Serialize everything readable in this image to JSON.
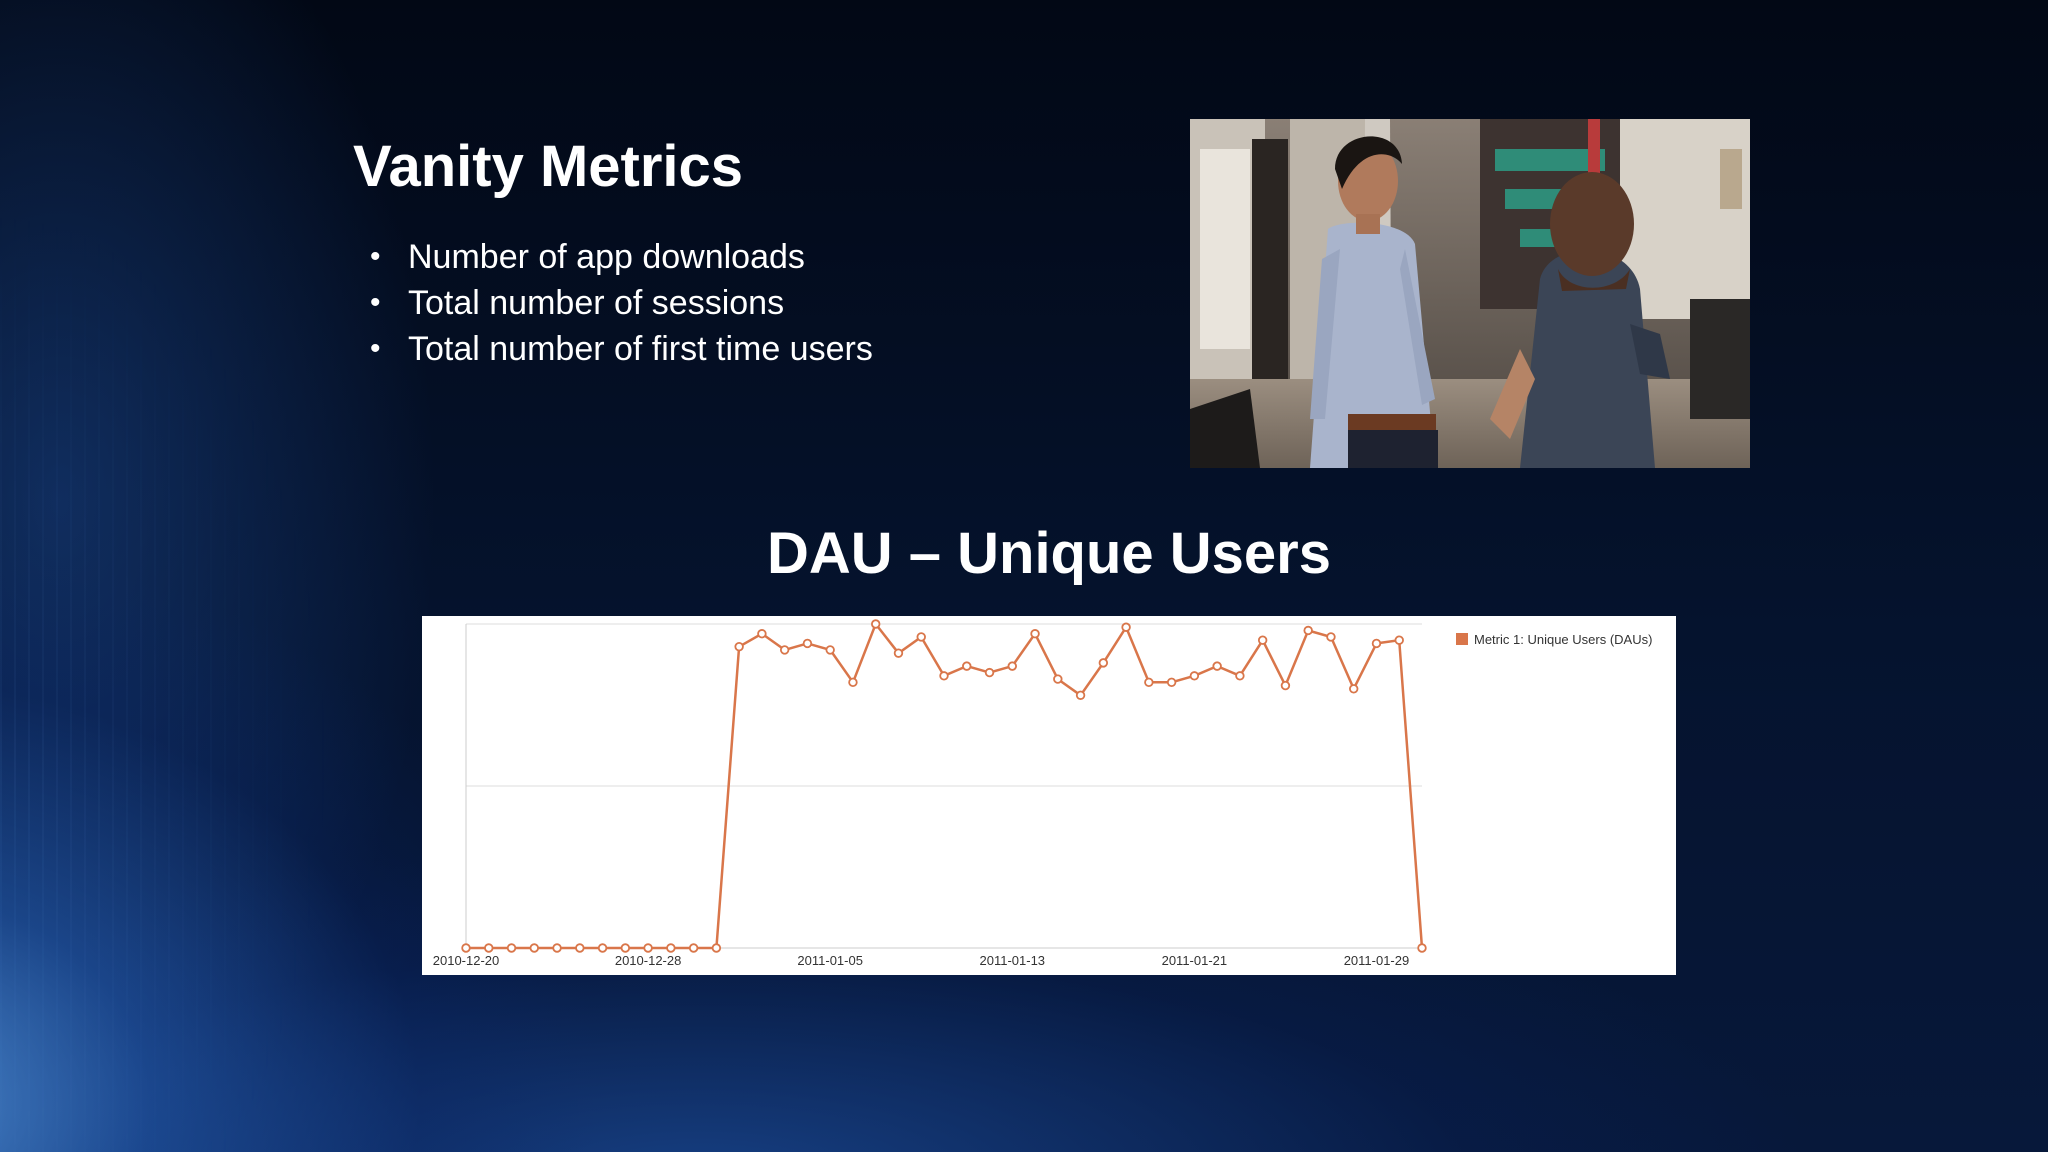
{
  "slide": {
    "title": "Vanity Metrics",
    "bullets": [
      "Number of app downloads",
      "Total number of sessions",
      "Total number of first time users"
    ],
    "photo": "office-scene-two-people",
    "chart_title": "DAU – Unique Users"
  },
  "colors": {
    "background": "#030b1e",
    "series": "#d9764a",
    "chart_bg": "#ffffff",
    "text": "#ffffff"
  },
  "chart_data": {
    "type": "line",
    "x": [
      "2010-12-20",
      "2010-12-21",
      "2010-12-22",
      "2010-12-23",
      "2010-12-24",
      "2010-12-25",
      "2010-12-26",
      "2010-12-27",
      "2010-12-28",
      "2010-12-29",
      "2010-12-30",
      "2010-12-31",
      "2011-01-01",
      "2011-01-02",
      "2011-01-03",
      "2011-01-04",
      "2011-01-05",
      "2011-01-06",
      "2011-01-07",
      "2011-01-08",
      "2011-01-09",
      "2011-01-10",
      "2011-01-11",
      "2011-01-12",
      "2011-01-13",
      "2011-01-14",
      "2011-01-15",
      "2011-01-16",
      "2011-01-17",
      "2011-01-18",
      "2011-01-19",
      "2011-01-20",
      "2011-01-21",
      "2011-01-22",
      "2011-01-23",
      "2011-01-24",
      "2011-01-25",
      "2011-01-26",
      "2011-01-27",
      "2011-01-28",
      "2011-01-29",
      "2011-01-30",
      "2011-01-31"
    ],
    "x_ticks": [
      "2010-12-20",
      "2010-12-28",
      "2011-01-05",
      "2011-01-13",
      "2011-01-21",
      "2011-01-29"
    ],
    "series": [
      {
        "name": "Metric 1: Unique Users (DAUs)",
        "values": [
          0,
          0,
          0,
          0,
          0,
          0,
          0,
          0,
          0,
          0,
          0,
          0,
          0.93,
          0.97,
          0.92,
          0.94,
          0.92,
          0.82,
          1.0,
          0.91,
          0.96,
          0.84,
          0.87,
          0.85,
          0.87,
          0.97,
          0.83,
          0.78,
          0.88,
          0.99,
          0.82,
          0.82,
          0.84,
          0.87,
          0.84,
          0.95,
          0.81,
          0.98,
          0.96,
          0.8,
          0.94,
          0.95,
          0
        ]
      }
    ],
    "ylim": [
      0,
      1
    ],
    "grid": true,
    "legend": "top-right"
  }
}
